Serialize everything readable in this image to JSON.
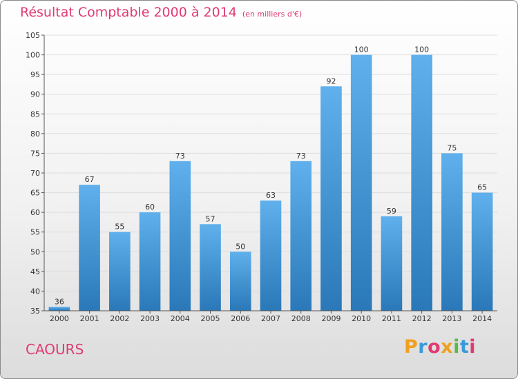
{
  "title": "Résultat Comptable 2000 à 2014",
  "unit_label": "(en milliers d'€)",
  "commune": "CAOURS",
  "logo": {
    "text": "Proxiti",
    "letters": [
      {
        "ch": "P",
        "color": "#f0a020"
      },
      {
        "ch": "r",
        "color": "#3a9ad9"
      },
      {
        "ch": "o",
        "color": "#e03a72"
      },
      {
        "ch": "x",
        "color": "#f0a020"
      },
      {
        "ch": "i",
        "color": "#5bb84a"
      },
      {
        "ch": "t",
        "color": "#3a9ad9"
      },
      {
        "ch": "i",
        "color": "#e03a72"
      }
    ]
  },
  "colors": {
    "title": "#e03a72",
    "bar_light": "#5fb0ec",
    "bar_dark": "#2a78b8",
    "grid": "#dddddd"
  },
  "chart_data": {
    "type": "bar",
    "title": "Résultat Comptable 2000 à 2014",
    "subtitle": "(en milliers d'€)",
    "categories": [
      "2000",
      "2001",
      "2002",
      "2003",
      "2004",
      "2005",
      "2006",
      "2007",
      "2008",
      "2009",
      "2010",
      "2011",
      "2012",
      "2013",
      "2014"
    ],
    "values": [
      36,
      67,
      55,
      60,
      73,
      57,
      50,
      63,
      73,
      92,
      100,
      59,
      100,
      75,
      65
    ],
    "ylim": [
      35,
      105
    ],
    "yticks": [
      35,
      40,
      45,
      50,
      55,
      60,
      65,
      70,
      75,
      80,
      85,
      90,
      95,
      100,
      105
    ],
    "grid": true,
    "xlabel": "",
    "ylabel": ""
  }
}
